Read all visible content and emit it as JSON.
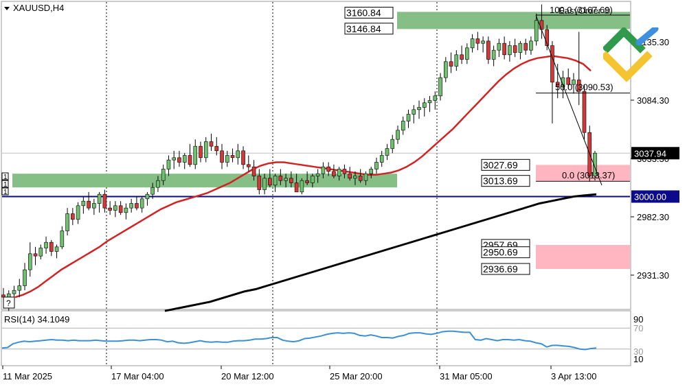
{
  "colors": {
    "background": "#ffffff",
    "frame": "#9a9a9a",
    "grid": "#000000",
    "bull_candle": "#6fc06f",
    "bear_candle": "#d23a3a",
    "wick": "#000000",
    "ma_red": "#d32222",
    "ma_black": "#000000",
    "support_line": "#0a0a8a",
    "green_zone": "#86bf86",
    "pink_zone": "#ffb6c1",
    "rsi_line": "#3b8fd4",
    "rsi_level": "#b0b0b0",
    "price_label_bg": "#000000",
    "support_label_bg": "#0a0a8a",
    "logo_green": "#2f9a4b",
    "logo_blue": "#3f8fe0",
    "logo_yellow": "#f4c431"
  },
  "header": {
    "symbol_timeframe": "XAUUSD,H4",
    "dropdown_icon": "triangle-down-icon"
  },
  "top_right": {
    "easy_order_label": "EasyOrder ©",
    "fib_top_label": "100.0 (3167.69)"
  },
  "price_axis": {
    "ticks": [
      {
        "value": 3135.3,
        "label": "3135.30"
      },
      {
        "value": 3084.3,
        "label": "3084.30"
      },
      {
        "value": 3033.3,
        "label": "3033.30"
      },
      {
        "value": 2982.3,
        "label": "2982.30"
      },
      {
        "value": 2931.3,
        "label": "2931.30"
      }
    ],
    "current_price": "3037.94",
    "support_price": "3000.00"
  },
  "time_axis": {
    "labels": [
      "11 Mar 2025",
      "17 Mar 04:00",
      "20 Mar 12:00",
      "25 Mar 20:00",
      "31 Mar 05:00",
      "3 Apr 13:00"
    ]
  },
  "zones": {
    "resistance": {
      "top": "3160.84",
      "bottom": "3146.84"
    },
    "pink_upper": {
      "top": "3027.69",
      "bottom": "3013.69"
    },
    "pink_lower": {
      "top": "2957.69",
      "mid": "2950.69",
      "bottom": "2936.69"
    },
    "left_box_markers": [
      "1",
      "1",
      "1"
    ]
  },
  "fibonacci": {
    "levels": [
      {
        "label": "100.0 (3167.69)",
        "price": 3167.69
      },
      {
        "label": "50.0 (3090.53)",
        "price": 3090.53
      },
      {
        "label": "0.0 (3013.37)",
        "price": 3013.37
      }
    ]
  },
  "rsi_panel": {
    "title": "RSI(14) 34.1049",
    "levels": [
      "90",
      "70",
      "30",
      "10"
    ],
    "help_icon_label": "?"
  },
  "chart_data": {
    "type": "candlestick",
    "symbol": "XAUUSD",
    "timeframe": "H4",
    "ylim": [
      2905,
      3185
    ],
    "ohlc_series": [
      {
        "o": 2914,
        "h": 2920,
        "l": 2906,
        "c": 2912
      },
      {
        "o": 2912,
        "h": 2918,
        "l": 2900,
        "c": 2915
      },
      {
        "o": 2915,
        "h": 2922,
        "l": 2908,
        "c": 2918
      },
      {
        "o": 2918,
        "h": 2928,
        "l": 2912,
        "c": 2922
      },
      {
        "o": 2922,
        "h": 2942,
        "l": 2918,
        "c": 2936
      },
      {
        "o": 2936,
        "h": 2960,
        "l": 2930,
        "c": 2950
      },
      {
        "o": 2950,
        "h": 2956,
        "l": 2940,
        "c": 2948
      },
      {
        "o": 2948,
        "h": 2958,
        "l": 2945,
        "c": 2955
      },
      {
        "o": 2955,
        "h": 2965,
        "l": 2950,
        "c": 2960
      },
      {
        "o": 2960,
        "h": 2962,
        "l": 2948,
        "c": 2952
      },
      {
        "o": 2952,
        "h": 2958,
        "l": 2946,
        "c": 2956
      },
      {
        "o": 2956,
        "h": 2974,
        "l": 2954,
        "c": 2970
      },
      {
        "o": 2970,
        "h": 2990,
        "l": 2966,
        "c": 2985
      },
      {
        "o": 2985,
        "h": 2990,
        "l": 2975,
        "c": 2980
      },
      {
        "o": 2980,
        "h": 2995,
        "l": 2976,
        "c": 2992
      },
      {
        "o": 2992,
        "h": 3000,
        "l": 2985,
        "c": 2996
      },
      {
        "o": 2996,
        "h": 3004,
        "l": 2988,
        "c": 2990
      },
      {
        "o": 2990,
        "h": 2998,
        "l": 2984,
        "c": 2994
      },
      {
        "o": 2994,
        "h": 3004,
        "l": 2986,
        "c": 3002
      },
      {
        "o": 3002,
        "h": 3006,
        "l": 2986,
        "c": 2990
      },
      {
        "o": 2990,
        "h": 2996,
        "l": 2984,
        "c": 2988
      },
      {
        "o": 2988,
        "h": 2996,
        "l": 2982,
        "c": 2992
      },
      {
        "o": 2992,
        "h": 2996,
        "l": 2984,
        "c": 2986
      },
      {
        "o": 2986,
        "h": 2994,
        "l": 2980,
        "c": 2990
      },
      {
        "o": 2990,
        "h": 2998,
        "l": 2986,
        "c": 2994
      },
      {
        "o": 2994,
        "h": 3000,
        "l": 2988,
        "c": 2990
      },
      {
        "o": 2990,
        "h": 3000,
        "l": 2986,
        "c": 2998
      },
      {
        "o": 2998,
        "h": 3004,
        "l": 2992,
        "c": 3002
      },
      {
        "o": 3002,
        "h": 3012,
        "l": 2998,
        "c": 3008
      },
      {
        "o": 3008,
        "h": 3018,
        "l": 3004,
        "c": 3014
      },
      {
        "o": 3014,
        "h": 3028,
        "l": 3010,
        "c": 3024
      },
      {
        "o": 3024,
        "h": 3036,
        "l": 3018,
        "c": 3032
      },
      {
        "o": 3032,
        "h": 3040,
        "l": 3024,
        "c": 3034
      },
      {
        "o": 3034,
        "h": 3040,
        "l": 3026,
        "c": 3030
      },
      {
        "o": 3030,
        "h": 3038,
        "l": 3024,
        "c": 3036
      },
      {
        "o": 3036,
        "h": 3046,
        "l": 3026,
        "c": 3028
      },
      {
        "o": 3028,
        "h": 3050,
        "l": 3024,
        "c": 3044
      },
      {
        "o": 3044,
        "h": 3048,
        "l": 3030,
        "c": 3034
      },
      {
        "o": 3034,
        "h": 3052,
        "l": 3030,
        "c": 3048
      },
      {
        "o": 3048,
        "h": 3055,
        "l": 3040,
        "c": 3044
      },
      {
        "o": 3044,
        "h": 3052,
        "l": 3036,
        "c": 3040
      },
      {
        "o": 3040,
        "h": 3046,
        "l": 3024,
        "c": 3030
      },
      {
        "o": 3030,
        "h": 3040,
        "l": 3026,
        "c": 3036
      },
      {
        "o": 3036,
        "h": 3042,
        "l": 3030,
        "c": 3034
      },
      {
        "o": 3034,
        "h": 3046,
        "l": 3028,
        "c": 3040
      },
      {
        "o": 3040,
        "h": 3044,
        "l": 3024,
        "c": 3028
      },
      {
        "o": 3028,
        "h": 3036,
        "l": 3022,
        "c": 3026
      },
      {
        "o": 3026,
        "h": 3032,
        "l": 3014,
        "c": 3018
      },
      {
        "o": 3018,
        "h": 3024,
        "l": 3002,
        "c": 3006
      },
      {
        "o": 3006,
        "h": 3020,
        "l": 3002,
        "c": 3016
      },
      {
        "o": 3016,
        "h": 3024,
        "l": 3008,
        "c": 3010
      },
      {
        "o": 3010,
        "h": 3020,
        "l": 3004,
        "c": 3018
      },
      {
        "o": 3018,
        "h": 3024,
        "l": 3010,
        "c": 3014
      },
      {
        "o": 3014,
        "h": 3020,
        "l": 3008,
        "c": 3016
      },
      {
        "o": 3016,
        "h": 3022,
        "l": 3008,
        "c": 3012
      },
      {
        "o": 3012,
        "h": 3020,
        "l": 3006,
        "c": 3004
      },
      {
        "o": 3004,
        "h": 3016,
        "l": 3002,
        "c": 3014
      },
      {
        "o": 3014,
        "h": 3022,
        "l": 3010,
        "c": 3012
      },
      {
        "o": 3012,
        "h": 3020,
        "l": 3008,
        "c": 3018
      },
      {
        "o": 3018,
        "h": 3024,
        "l": 3012,
        "c": 3020
      },
      {
        "o": 3020,
        "h": 3030,
        "l": 3016,
        "c": 3026
      },
      {
        "o": 3026,
        "h": 3030,
        "l": 3018,
        "c": 3022
      },
      {
        "o": 3022,
        "h": 3028,
        "l": 3016,
        "c": 3018
      },
      {
        "o": 3018,
        "h": 3026,
        "l": 3014,
        "c": 3024
      },
      {
        "o": 3024,
        "h": 3028,
        "l": 3016,
        "c": 3020
      },
      {
        "o": 3020,
        "h": 3026,
        "l": 3014,
        "c": 3016
      },
      {
        "o": 3016,
        "h": 3022,
        "l": 3010,
        "c": 3018
      },
      {
        "o": 3018,
        "h": 3024,
        "l": 3012,
        "c": 3014
      },
      {
        "o": 3014,
        "h": 3022,
        "l": 3010,
        "c": 3020
      },
      {
        "o": 3020,
        "h": 3026,
        "l": 3016,
        "c": 3024
      },
      {
        "o": 3024,
        "h": 3034,
        "l": 3020,
        "c": 3030
      },
      {
        "o": 3030,
        "h": 3040,
        "l": 3026,
        "c": 3036
      },
      {
        "o": 3036,
        "h": 3046,
        "l": 3032,
        "c": 3042
      },
      {
        "o": 3042,
        "h": 3054,
        "l": 3038,
        "c": 3050
      },
      {
        "o": 3050,
        "h": 3062,
        "l": 3046,
        "c": 3058
      },
      {
        "o": 3058,
        "h": 3070,
        "l": 3054,
        "c": 3066
      },
      {
        "o": 3066,
        "h": 3076,
        "l": 3060,
        "c": 3072
      },
      {
        "o": 3072,
        "h": 3080,
        "l": 3064,
        "c": 3076
      },
      {
        "o": 3076,
        "h": 3084,
        "l": 3068,
        "c": 3078
      },
      {
        "o": 3078,
        "h": 3086,
        "l": 3070,
        "c": 3082
      },
      {
        "o": 3082,
        "h": 3088,
        "l": 3074,
        "c": 3084
      },
      {
        "o": 3084,
        "h": 3092,
        "l": 3076,
        "c": 3088
      },
      {
        "o": 3088,
        "h": 3108,
        "l": 3084,
        "c": 3104
      },
      {
        "o": 3104,
        "h": 3122,
        "l": 3100,
        "c": 3118
      },
      {
        "o": 3118,
        "h": 3126,
        "l": 3108,
        "c": 3114
      },
      {
        "o": 3114,
        "h": 3128,
        "l": 3110,
        "c": 3124
      },
      {
        "o": 3124,
        "h": 3132,
        "l": 3116,
        "c": 3120
      },
      {
        "o": 3120,
        "h": 3134,
        "l": 3116,
        "c": 3130
      },
      {
        "o": 3130,
        "h": 3142,
        "l": 3126,
        "c": 3138
      },
      {
        "o": 3138,
        "h": 3144,
        "l": 3128,
        "c": 3134
      },
      {
        "o": 3134,
        "h": 3140,
        "l": 3126,
        "c": 3136
      },
      {
        "o": 3136,
        "h": 3140,
        "l": 3116,
        "c": 3120
      },
      {
        "o": 3120,
        "h": 3132,
        "l": 3114,
        "c": 3128
      },
      {
        "o": 3128,
        "h": 3138,
        "l": 3122,
        "c": 3134
      },
      {
        "o": 3134,
        "h": 3140,
        "l": 3120,
        "c": 3124
      },
      {
        "o": 3124,
        "h": 3136,
        "l": 3118,
        "c": 3132
      },
      {
        "o": 3132,
        "h": 3138,
        "l": 3122,
        "c": 3126
      },
      {
        "o": 3126,
        "h": 3136,
        "l": 3120,
        "c": 3134
      },
      {
        "o": 3134,
        "h": 3138,
        "l": 3124,
        "c": 3128
      },
      {
        "o": 3128,
        "h": 3140,
        "l": 3124,
        "c": 3136
      },
      {
        "o": 3136,
        "h": 3160,
        "l": 3132,
        "c": 3154
      },
      {
        "o": 3154,
        "h": 3168,
        "l": 3138,
        "c": 3146
      },
      {
        "o": 3146,
        "h": 3150,
        "l": 3128,
        "c": 3132
      },
      {
        "o": 3132,
        "h": 3136,
        "l": 3064,
        "c": 3100
      },
      {
        "o": 3100,
        "h": 3116,
        "l": 3086,
        "c": 3096
      },
      {
        "o": 3096,
        "h": 3110,
        "l": 3086,
        "c": 3104
      },
      {
        "o": 3104,
        "h": 3112,
        "l": 3094,
        "c": 3098
      },
      {
        "o": 3098,
        "h": 3108,
        "l": 3090,
        "c": 3102
      },
      {
        "o": 3102,
        "h": 3144,
        "l": 3080,
        "c": 3092
      },
      {
        "o": 3092,
        "h": 3098,
        "l": 3050,
        "c": 3056
      },
      {
        "o": 3056,
        "h": 3062,
        "l": 3013,
        "c": 3018
      },
      {
        "o": 3018,
        "h": 3040,
        "l": 3014,
        "c": 3038
      }
    ],
    "ma_fast": [
      2912,
      2914,
      2917,
      2921,
      2926,
      2931,
      2936,
      2940,
      2944,
      2948,
      2952,
      2956,
      2961,
      2965,
      2969,
      2973,
      2977,
      2981,
      2985,
      2989,
      2992,
      2995,
      2997,
      2999,
      3001,
      3003,
      3006,
      3009,
      3012,
      3016,
      3020,
      3024,
      3027,
      3029,
      3030,
      3030,
      3029,
      3028,
      3027,
      3026,
      3025,
      3024,
      3023,
      3022,
      3021,
      3020,
      3019,
      3019,
      3020,
      3021,
      3023,
      3026,
      3030,
      3035,
      3041,
      3047,
      3053,
      3059,
      3066,
      3073,
      3080,
      3087,
      3094,
      3101,
      3107,
      3112,
      3116,
      3119,
      3121,
      3122,
      3123,
      3122,
      3121,
      3119,
      3116,
      3110
    ],
    "ma_slow": [
      2900,
      2902,
      2904,
      2906,
      2908,
      2911,
      2914,
      2917,
      2919,
      2922,
      2925,
      2928,
      2931,
      2934,
      2937,
      2940,
      2943,
      2946,
      2949,
      2952,
      2955,
      2958,
      2961,
      2964,
      2967,
      2970,
      2973,
      2976,
      2979,
      2982,
      2985,
      2988,
      2991,
      2994,
      2996,
      2998,
      3000,
      3001,
      3002
    ],
    "rsi": [
      32,
      33,
      40,
      43,
      45,
      44,
      45,
      46,
      47,
      48,
      47,
      47,
      46,
      47,
      46,
      46,
      46,
      47,
      46,
      45,
      45,
      45,
      46,
      47,
      47,
      46,
      47,
      48,
      48,
      47,
      44,
      45,
      42,
      41,
      42,
      44,
      46,
      44,
      43,
      44,
      43,
      43,
      45,
      46,
      46,
      47,
      49,
      49,
      50,
      52,
      52,
      47,
      45,
      44,
      46,
      50,
      51,
      53,
      55,
      58,
      60,
      61,
      60,
      61,
      60,
      56,
      55,
      57,
      55,
      52,
      52,
      51,
      54,
      56,
      60,
      61,
      61,
      59,
      58,
      60,
      63,
      64,
      64,
      63,
      62,
      62,
      48,
      47,
      50,
      48,
      46,
      48,
      48,
      47,
      48,
      46,
      45,
      42,
      40,
      34,
      37,
      37,
      36,
      35,
      33,
      30,
      29,
      31,
      32
    ],
    "horizontal_levels": [
      {
        "name": "support",
        "value": 3000.0
      },
      {
        "name": "resistance_top",
        "value": 3160.84
      },
      {
        "name": "resistance_bottom",
        "value": 3146.84
      },
      {
        "name": "demand_top",
        "value": 3027.69
      },
      {
        "name": "demand_bottom",
        "value": 3013.69
      },
      {
        "name": "target_top",
        "value": 2957.69
      },
      {
        "name": "target_mid",
        "value": 2950.69
      },
      {
        "name": "target_bottom",
        "value": 2936.69
      }
    ],
    "rsi_value": 34.1049,
    "rsi_levels": [
      90,
      70,
      30,
      10
    ]
  }
}
